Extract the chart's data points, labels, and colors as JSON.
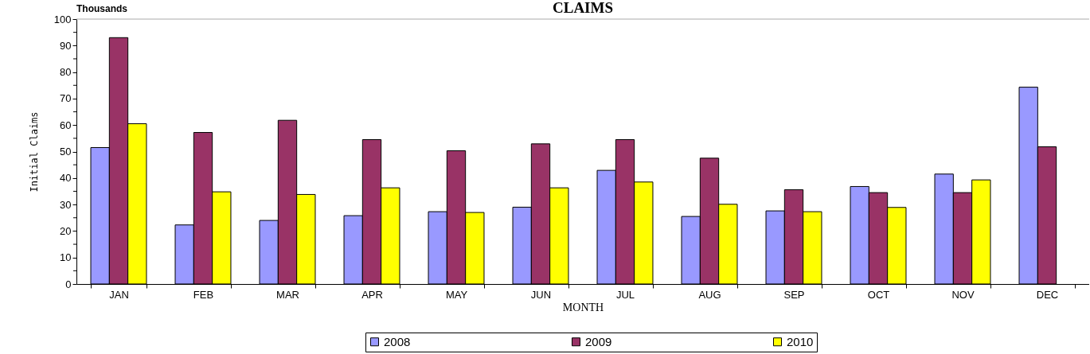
{
  "chart_data": {
    "type": "bar",
    "title": "CLAIMS",
    "xlabel": "MONTH",
    "ylabel": "Initial Claims",
    "annotations": [
      "Thousands"
    ],
    "categories": [
      "JAN",
      "FEB",
      "MAR",
      "APR",
      "MAY",
      "JUN",
      "JUL",
      "AUG",
      "SEP",
      "OCT",
      "NOV",
      "DEC"
    ],
    "series": [
      {
        "name": "2008",
        "color": "#9999ff",
        "values": [
          51.5,
          22.3,
          24,
          25.8,
          27.3,
          29,
          42.9,
          25.5,
          27.6,
          36.8,
          41.5,
          74.3
        ]
      },
      {
        "name": "2009",
        "color": "#993366",
        "values": [
          93,
          57.2,
          61.8,
          54.5,
          50.3,
          52.9,
          54.5,
          47.5,
          35.6,
          34.5,
          34.5,
          51.8
        ]
      },
      {
        "name": "2010",
        "color": "#ffff00",
        "values": [
          60.5,
          34.8,
          33.8,
          36.3,
          27,
          36.3,
          38.5,
          30.1,
          27.3,
          28.9,
          39.3,
          null
        ]
      }
    ],
    "ylim": [
      0,
      100
    ],
    "yticks": [
      0,
      10,
      20,
      30,
      40,
      50,
      60,
      70,
      80,
      90,
      100
    ],
    "grid": false,
    "legend": "bottom"
  }
}
